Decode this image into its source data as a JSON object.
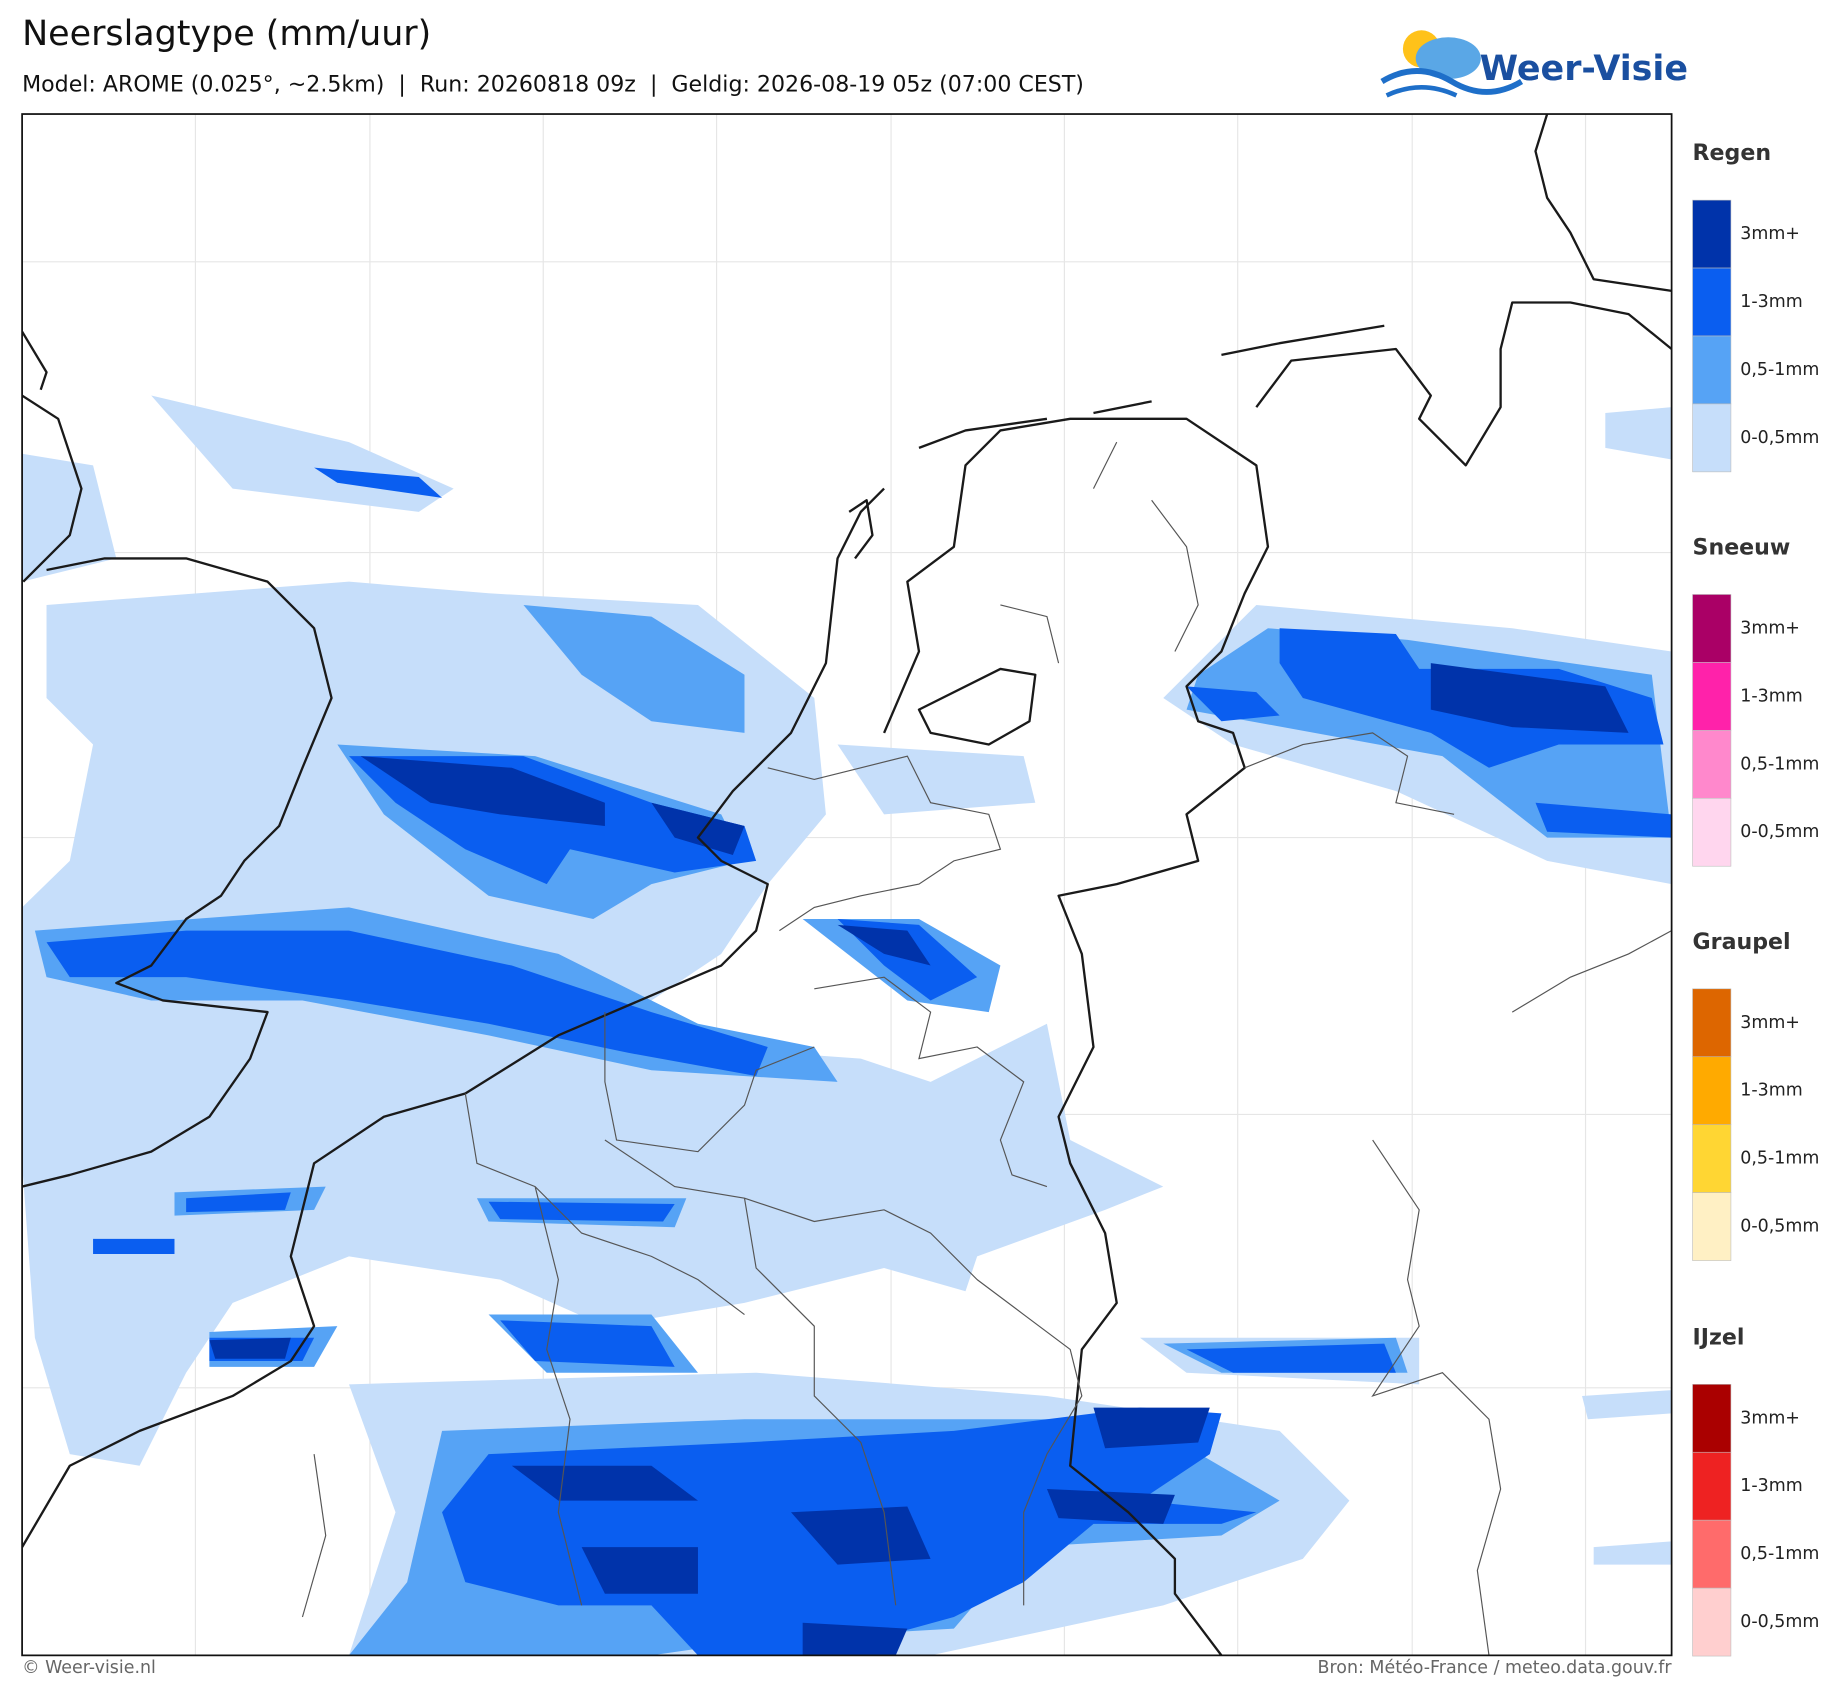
{
  "header": {
    "title": "Neerslagtype (mm/uur)",
    "subtitle": "Model: AROME (0.025°, ~2.5km)  |  Run: 20260818 09z  |  Geldig: 2026-08-19 05z (07:00 CEST)"
  },
  "logo": {
    "text": "Weer-Visie"
  },
  "legend": {
    "groups": [
      {
        "title": "Regen",
        "items": [
          {
            "label": "3mm+",
            "color": "#0033aa"
          },
          {
            "label": "1-3mm",
            "color": "#0a5ef0"
          },
          {
            "label": "0,5-1mm",
            "color": "#56a3f5"
          },
          {
            "label": "0-0,5mm",
            "color": "#c6defa"
          }
        ]
      },
      {
        "title": "Sneeuw",
        "items": [
          {
            "label": "3mm+",
            "color": "#aa0066"
          },
          {
            "label": "1-3mm",
            "color": "#ff22aa"
          },
          {
            "label": "0,5-1mm",
            "color": "#ff88cc"
          },
          {
            "label": "0-0,5mm",
            "color": "#ffd6ee"
          }
        ]
      },
      {
        "title": "Graupel",
        "items": [
          {
            "label": "3mm+",
            "color": "#dd6600"
          },
          {
            "label": "1-3mm",
            "color": "#ffaa00"
          },
          {
            "label": "0,5-1mm",
            "color": "#ffd633"
          },
          {
            "label": "0-0,5mm",
            "color": "#fff0c4"
          }
        ]
      },
      {
        "title": "IJzel",
        "items": [
          {
            "label": "3mm+",
            "color": "#aa0000"
          },
          {
            "label": "1-3mm",
            "color": "#ee2222"
          },
          {
            "label": "0,5-1mm",
            "color": "#ff6b6b"
          },
          {
            "label": "0-0,5mm",
            "color": "#ffcfcf"
          }
        ]
      }
    ]
  },
  "footer": {
    "left": "© Weer-visie.nl",
    "right": "Bron: Météo-France / meteo.data.gouv.fr"
  }
}
